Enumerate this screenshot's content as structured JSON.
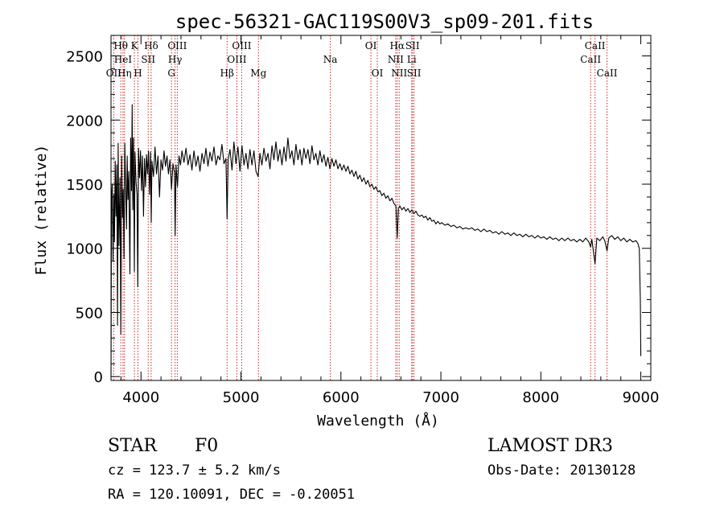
{
  "chart_data": {
    "type": "line",
    "title": "spec-56321-GAC119S00V3_sp09-201.fits",
    "xlabel": "Wavelength (Å)",
    "ylabel": "Flux (relative)",
    "xlim": [
      3700,
      9100
    ],
    "ylim": [
      -30,
      2660
    ],
    "xticks": [
      4000,
      5000,
      6000,
      7000,
      8000,
      9000
    ],
    "xtick_labels": [
      "4000",
      "5000",
      "6000",
      "7000",
      "8000",
      "9000"
    ],
    "yticks": [
      0,
      500,
      1000,
      1500,
      2000,
      2500
    ],
    "ytick_labels": [
      "0",
      "500",
      "1000",
      "1500",
      "2000",
      "2500"
    ],
    "series": [
      {
        "name": "spectrum",
        "points": [
          [
            3700,
            0
          ],
          [
            3705,
            1380
          ],
          [
            3712,
            1500
          ],
          [
            3720,
            900
          ],
          [
            3728,
            1420
          ],
          [
            3735,
            1050
          ],
          [
            3742,
            1680
          ],
          [
            3750,
            1250
          ],
          [
            3758,
            1650
          ],
          [
            3765,
            400
          ],
          [
            3772,
            1820
          ],
          [
            3780,
            1020
          ],
          [
            3790,
            1550
          ],
          [
            3798,
            330
          ],
          [
            3806,
            1720
          ],
          [
            3815,
            1240
          ],
          [
            3822,
            1460
          ],
          [
            3830,
            920
          ],
          [
            3838,
            1820
          ],
          [
            3846,
            1520
          ],
          [
            3855,
            1150
          ],
          [
            3862,
            1720
          ],
          [
            3870,
            1380
          ],
          [
            3878,
            1600
          ],
          [
            3889,
            800
          ],
          [
            3896,
            1860
          ],
          [
            3905,
            1450
          ],
          [
            3912,
            2120
          ],
          [
            3918,
            1300
          ],
          [
            3925,
            1860
          ],
          [
            3933,
            820
          ],
          [
            3940,
            1750
          ],
          [
            3950,
            1520
          ],
          [
            3960,
            1420
          ],
          [
            3968,
            700
          ],
          [
            3975,
            1780
          ],
          [
            3985,
            1550
          ],
          [
            3995,
            1760
          ],
          [
            4005,
            1450
          ],
          [
            4015,
            1720
          ],
          [
            4025,
            1250
          ],
          [
            4035,
            1700
          ],
          [
            4045,
            1480
          ],
          [
            4055,
            1730
          ],
          [
            4065,
            1580
          ],
          [
            4075,
            1760
          ],
          [
            4085,
            1420
          ],
          [
            4095,
            1750
          ],
          [
            4102,
            1200
          ],
          [
            4110,
            1680
          ],
          [
            4125,
            1560
          ],
          [
            4140,
            1790
          ],
          [
            4155,
            1580
          ],
          [
            4170,
            1720
          ],
          [
            4185,
            1400
          ],
          [
            4200,
            1690
          ],
          [
            4215,
            1610
          ],
          [
            4230,
            1760
          ],
          [
            4245,
            1640
          ],
          [
            4260,
            1720
          ],
          [
            4275,
            1580
          ],
          [
            4290,
            1690
          ],
          [
            4305,
            1460
          ],
          [
            4320,
            1660
          ],
          [
            4335,
            1590
          ],
          [
            4341,
            1100
          ],
          [
            4350,
            1650
          ],
          [
            4365,
            1480
          ],
          [
            4380,
            1720
          ],
          [
            4395,
            1650
          ],
          [
            4410,
            1760
          ],
          [
            4430,
            1670
          ],
          [
            4450,
            1780
          ],
          [
            4470,
            1650
          ],
          [
            4490,
            1730
          ],
          [
            4510,
            1610
          ],
          [
            4530,
            1760
          ],
          [
            4550,
            1640
          ],
          [
            4570,
            1720
          ],
          [
            4590,
            1600
          ],
          [
            4610,
            1740
          ],
          [
            4630,
            1660
          ],
          [
            4650,
            1780
          ],
          [
            4670,
            1640
          ],
          [
            4690,
            1750
          ],
          [
            4710,
            1680
          ],
          [
            4730,
            1790
          ],
          [
            4750,
            1650
          ],
          [
            4770,
            1720
          ],
          [
            4790,
            1690
          ],
          [
            4810,
            1810
          ],
          [
            4830,
            1660
          ],
          [
            4850,
            1700
          ],
          [
            4861,
            1230
          ],
          [
            4872,
            1690
          ],
          [
            4890,
            1770
          ],
          [
            4910,
            1610
          ],
          [
            4930,
            1830
          ],
          [
            4950,
            1660
          ],
          [
            4970,
            1790
          ],
          [
            4990,
            1600
          ],
          [
            5010,
            1800
          ],
          [
            5030,
            1650
          ],
          [
            5050,
            1740
          ],
          [
            5070,
            1620
          ],
          [
            5090,
            1770
          ],
          [
            5110,
            1650
          ],
          [
            5130,
            1760
          ],
          [
            5150,
            1600
          ],
          [
            5172,
            1560
          ],
          [
            5190,
            1740
          ],
          [
            5210,
            1650
          ],
          [
            5230,
            1780
          ],
          [
            5250,
            1680
          ],
          [
            5270,
            1740
          ],
          [
            5290,
            1620
          ],
          [
            5310,
            1800
          ],
          [
            5330,
            1690
          ],
          [
            5350,
            1830
          ],
          [
            5370,
            1680
          ],
          [
            5390,
            1770
          ],
          [
            5410,
            1650
          ],
          [
            5430,
            1790
          ],
          [
            5450,
            1680
          ],
          [
            5470,
            1860
          ],
          [
            5490,
            1700
          ],
          [
            5510,
            1760
          ],
          [
            5530,
            1650
          ],
          [
            5550,
            1810
          ],
          [
            5570,
            1690
          ],
          [
            5590,
            1770
          ],
          [
            5610,
            1650
          ],
          [
            5630,
            1780
          ],
          [
            5650,
            1700
          ],
          [
            5670,
            1770
          ],
          [
            5690,
            1660
          ],
          [
            5710,
            1800
          ],
          [
            5730,
            1690
          ],
          [
            5750,
            1740
          ],
          [
            5770,
            1650
          ],
          [
            5790,
            1760
          ],
          [
            5810,
            1670
          ],
          [
            5830,
            1730
          ],
          [
            5850,
            1640
          ],
          [
            5870,
            1710
          ],
          [
            5890,
            1620
          ],
          [
            5910,
            1700
          ],
          [
            5930,
            1640
          ],
          [
            5950,
            1690
          ],
          [
            5970,
            1620
          ],
          [
            5990,
            1660
          ],
          [
            6010,
            1610
          ],
          [
            6030,
            1650
          ],
          [
            6050,
            1600
          ],
          [
            6070,
            1640
          ],
          [
            6090,
            1580
          ],
          [
            6110,
            1610
          ],
          [
            6130,
            1560
          ],
          [
            6150,
            1600
          ],
          [
            6170,
            1540
          ],
          [
            6190,
            1570
          ],
          [
            6210,
            1520
          ],
          [
            6230,
            1550
          ],
          [
            6250,
            1500
          ],
          [
            6270,
            1530
          ],
          [
            6290,
            1480
          ],
          [
            6310,
            1500
          ],
          [
            6330,
            1460
          ],
          [
            6350,
            1480
          ],
          [
            6370,
            1440
          ],
          [
            6390,
            1450
          ],
          [
            6410,
            1410
          ],
          [
            6430,
            1430
          ],
          [
            6450,
            1390
          ],
          [
            6470,
            1410
          ],
          [
            6490,
            1370
          ],
          [
            6510,
            1390
          ],
          [
            6530,
            1350
          ],
          [
            6550,
            1330
          ],
          [
            6563,
            1080
          ],
          [
            6575,
            1310
          ],
          [
            6590,
            1330
          ],
          [
            6610,
            1300
          ],
          [
            6630,
            1320
          ],
          [
            6650,
            1290
          ],
          [
            6670,
            1310
          ],
          [
            6690,
            1280
          ],
          [
            6710,
            1300
          ],
          [
            6730,
            1270
          ],
          [
            6750,
            1290
          ],
          [
            6770,
            1260
          ],
          [
            6790,
            1250
          ],
          [
            6810,
            1260
          ],
          [
            6830,
            1240
          ],
          [
            6850,
            1250
          ],
          [
            6870,
            1220
          ],
          [
            6890,
            1240
          ],
          [
            6910,
            1210
          ],
          [
            6930,
            1220
          ],
          [
            6950,
            1190
          ],
          [
            6970,
            1210
          ],
          [
            6990,
            1190
          ],
          [
            7010,
            1200
          ],
          [
            7040,
            1180
          ],
          [
            7070,
            1190
          ],
          [
            7100,
            1170
          ],
          [
            7130,
            1180
          ],
          [
            7160,
            1160
          ],
          [
            7190,
            1170
          ],
          [
            7220,
            1150
          ],
          [
            7250,
            1160
          ],
          [
            7280,
            1150
          ],
          [
            7310,
            1160
          ],
          [
            7340,
            1140
          ],
          [
            7370,
            1150
          ],
          [
            7400,
            1130
          ],
          [
            7430,
            1150
          ],
          [
            7460,
            1130
          ],
          [
            7490,
            1140
          ],
          [
            7520,
            1120
          ],
          [
            7550,
            1130
          ],
          [
            7580,
            1110
          ],
          [
            7610,
            1130
          ],
          [
            7640,
            1110
          ],
          [
            7670,
            1120
          ],
          [
            7700,
            1100
          ],
          [
            7730,
            1120
          ],
          [
            7760,
            1100
          ],
          [
            7790,
            1110
          ],
          [
            7820,
            1090
          ],
          [
            7850,
            1110
          ],
          [
            7880,
            1090
          ],
          [
            7910,
            1100
          ],
          [
            7940,
            1080
          ],
          [
            7970,
            1100
          ],
          [
            8000,
            1080
          ],
          [
            8030,
            1090
          ],
          [
            8060,
            1070
          ],
          [
            8090,
            1090
          ],
          [
            8120,
            1070
          ],
          [
            8150,
            1080
          ],
          [
            8180,
            1060
          ],
          [
            8210,
            1080
          ],
          [
            8240,
            1060
          ],
          [
            8270,
            1080
          ],
          [
            8300,
            1060
          ],
          [
            8330,
            1070
          ],
          [
            8360,
            1050
          ],
          [
            8390,
            1070
          ],
          [
            8420,
            1050
          ],
          [
            8450,
            1080
          ],
          [
            8480,
            1050
          ],
          [
            8498,
            1010
          ],
          [
            8510,
            1070
          ],
          [
            8542,
            880
          ],
          [
            8560,
            1080
          ],
          [
            8590,
            1060
          ],
          [
            8620,
            1090
          ],
          [
            8640,
            1060
          ],
          [
            8662,
            980
          ],
          [
            8680,
            1080
          ],
          [
            8710,
            1100
          ],
          [
            8740,
            1070
          ],
          [
            8770,
            1090
          ],
          [
            8800,
            1060
          ],
          [
            8830,
            1080
          ],
          [
            8860,
            1050
          ],
          [
            8890,
            1070
          ],
          [
            8920,
            1050
          ],
          [
            8950,
            1060
          ],
          [
            8970,
            1040
          ],
          [
            8985,
            1000
          ],
          [
            8995,
            600
          ],
          [
            9000,
            160
          ]
        ]
      }
    ],
    "lines": [
      {
        "name": "OII",
        "wavelength": 3727,
        "row": 2
      },
      {
        "name": "Hθ",
        "wavelength": 3798,
        "row": 0
      },
      {
        "name": "HeI",
        "wavelength": 3820,
        "row": 1
      },
      {
        "name": "Hη",
        "wavelength": 3835,
        "row": 2
      },
      {
        "name": "K",
        "wavelength": 3934,
        "row": 0
      },
      {
        "name": "H",
        "wavelength": 3969,
        "row": 2
      },
      {
        "name": "SII",
        "wavelength": 4072,
        "row": 1
      },
      {
        "name": "Hδ",
        "wavelength": 4102,
        "row": 0
      },
      {
        "name": "G",
        "wavelength": 4305,
        "row": 2
      },
      {
        "name": "Hγ",
        "wavelength": 4341,
        "row": 1
      },
      {
        "name": "OIII",
        "wavelength": 4363,
        "row": 0
      },
      {
        "name": "Hβ",
        "wavelength": 4861,
        "row": 2
      },
      {
        "name": "OIII",
        "wavelength": 4959,
        "row": 1
      },
      {
        "name": "OIII",
        "wavelength": 5007,
        "row": 0
      },
      {
        "name": "Mg",
        "wavelength": 5175,
        "row": 2
      },
      {
        "name": "Na",
        "wavelength": 5894,
        "row": 1
      },
      {
        "name": "OI",
        "wavelength": 6300,
        "row": 0
      },
      {
        "name": "OI",
        "wavelength": 6364,
        "row": 2
      },
      {
        "name": "NII",
        "wavelength": 6548,
        "row": 1
      },
      {
        "name": "Hα",
        "wavelength": 6563,
        "row": 0
      },
      {
        "name": "NII",
        "wavelength": 6583,
        "row": 2
      },
      {
        "name": "Li",
        "wavelength": 6708,
        "row": 1
      },
      {
        "name": "SII",
        "wavelength": 6716,
        "row": 0
      },
      {
        "name": "SII",
        "wavelength": 6731,
        "row": 2
      },
      {
        "name": "CaII",
        "wavelength": 8498,
        "row": 1
      },
      {
        "name": "CaII",
        "wavelength": 8542,
        "row": 0
      },
      {
        "name": "CaII",
        "wavelength": 8662,
        "row": 2
      }
    ]
  },
  "info": {
    "object_class": "STAR",
    "subclass": "F0",
    "cz": "cz = 123.7 ± 5.2 km/s",
    "coords": "RA = 120.10091, DEC =  -0.20051",
    "survey": "LAMOST DR3",
    "obs_date": "Obs-Date: 20130128"
  },
  "colors": {
    "line_marker": "#cc2a2a",
    "spectrum": "#000000",
    "axis": "#000000"
  }
}
